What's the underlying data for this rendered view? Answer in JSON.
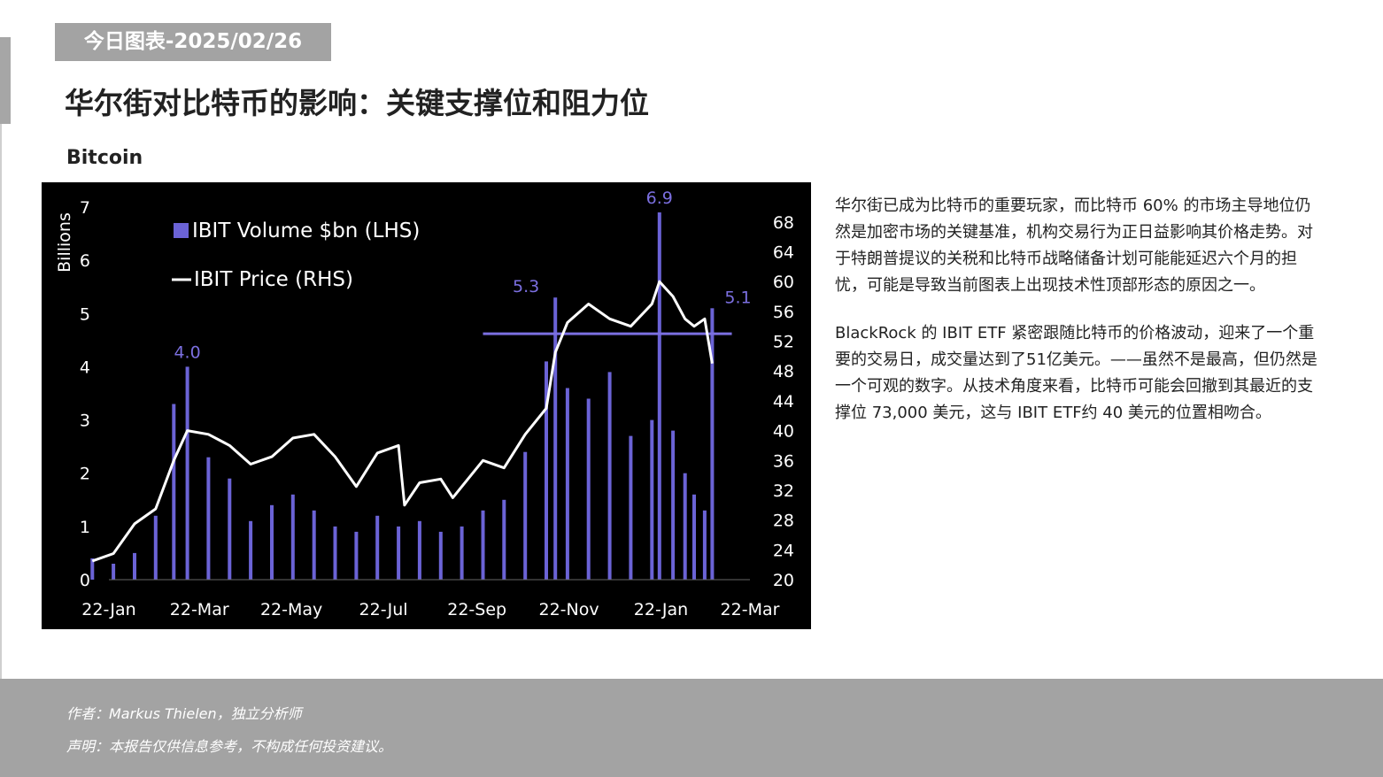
{
  "header": {
    "date_tag": "今日图表-2025/02/26",
    "title": "华尔街对比特币的影响：关键支撑位和阻力位"
  },
  "chart_title": "Bitcoin",
  "colors": {
    "volume": "#6b63d6",
    "price": "#ffffff",
    "resistance": "#7b6fe0",
    "background": "#000000",
    "tag": "#a3a3a3"
  },
  "chart_data": {
    "type": "bar",
    "legend": [
      "IBIT Volume $bn (LHS)",
      "IBIT Price (RHS)"
    ],
    "legend_placement": "top-left",
    "ylabel": "Billions",
    "ylim_left": [
      0,
      7
    ],
    "ylim_right": [
      20,
      70
    ],
    "y_ticks_left": [
      "0",
      "1",
      "2",
      "3",
      "4",
      "5",
      "6",
      "7"
    ],
    "y_ticks_right": [
      "20",
      "24",
      "28",
      "32",
      "36",
      "40",
      "44",
      "48",
      "52",
      "56",
      "60",
      "64",
      "68"
    ],
    "x_ticks": [
      "22-Jan",
      "22-Mar",
      "22-May",
      "22-Jul",
      "22-Sep",
      "22-Nov",
      "22-Jan",
      "22-Mar"
    ],
    "annotations": [
      "4.0",
      "5.3",
      "6.9",
      "5.1"
    ],
    "resistance_level": 53,
    "grid": false,
    "series": [
      {
        "name": "IBIT Volume $bn (LHS)",
        "x": [
          "2024-01-11",
          "2024-01-25",
          "2024-02-08",
          "2024-02-22",
          "2024-03-05",
          "2024-03-14",
          "2024-03-28",
          "2024-04-11",
          "2024-04-25",
          "2024-05-09",
          "2024-05-23",
          "2024-06-06",
          "2024-06-20",
          "2024-07-04",
          "2024-07-18",
          "2024-08-01",
          "2024-08-15",
          "2024-08-29",
          "2024-09-12",
          "2024-09-26",
          "2024-10-10",
          "2024-10-24",
          "2024-11-07",
          "2024-11-13",
          "2024-11-21",
          "2024-12-05",
          "2024-12-19",
          "2025-01-02",
          "2025-01-16",
          "2025-01-21",
          "2025-01-30",
          "2025-02-07",
          "2025-02-13",
          "2025-02-20",
          "2025-02-25"
        ],
        "values": [
          0.4,
          0.3,
          0.5,
          1.2,
          3.3,
          4.0,
          2.3,
          1.9,
          1.1,
          1.4,
          1.6,
          1.3,
          1.0,
          0.9,
          1.2,
          1.0,
          1.1,
          0.9,
          1.0,
          1.3,
          1.5,
          2.4,
          4.1,
          5.3,
          3.6,
          3.4,
          3.9,
          2.7,
          3.0,
          6.9,
          2.8,
          2.0,
          1.6,
          1.3,
          5.1
        ]
      },
      {
        "name": "IBIT Price (RHS)",
        "x": [
          "2024-01-11",
          "2024-01-25",
          "2024-02-08",
          "2024-02-22",
          "2024-03-05",
          "2024-03-14",
          "2024-03-28",
          "2024-04-11",
          "2024-04-25",
          "2024-05-09",
          "2024-05-23",
          "2024-06-06",
          "2024-06-20",
          "2024-07-04",
          "2024-07-18",
          "2024-08-01",
          "2024-08-05",
          "2024-08-15",
          "2024-08-29",
          "2024-09-06",
          "2024-09-12",
          "2024-09-26",
          "2024-10-10",
          "2024-10-24",
          "2024-11-07",
          "2024-11-13",
          "2024-11-21",
          "2024-12-05",
          "2024-12-19",
          "2025-01-02",
          "2025-01-16",
          "2025-01-21",
          "2025-01-30",
          "2025-02-07",
          "2025-02-13",
          "2025-02-20",
          "2025-02-25"
        ],
        "values": [
          22.5,
          23.5,
          27.5,
          29.5,
          36.0,
          40.0,
          39.5,
          38.0,
          35.5,
          36.5,
          39.0,
          39.5,
          36.5,
          32.5,
          37.0,
          38.0,
          30.0,
          33.0,
          33.5,
          31.0,
          32.5,
          36.0,
          35.0,
          39.5,
          43.0,
          50.5,
          54.5,
          57.0,
          55.0,
          54.0,
          57.0,
          60.0,
          58.0,
          55.0,
          54.0,
          55.0,
          49.0
        ]
      }
    ]
  },
  "side_text": {
    "p1": "华尔街已成为比特币的重要玩家，而比特币 60% 的市场主导地位仍然是加密市场的关键基准，机构交易行为正日益影响其价格走势。对于特朗普提议的关税和比特币战略储备计划可能能延迟六个月的担忧，可能是导致当前图表上出现技术性顶部形态的原因之一。",
    "p2": "BlackRock 的 IBIT ETF 紧密跟随比特币的价格波动，迎来了一个重要的交易日，成交量达到了51亿美元。——虽然不是最高，但仍然是一个可观的数字。从技术角度来看，比特币可能会回撤到其最近的支撑位 73,000 美元，这与 IBIT ETF约 40 美元的位置相吻合。"
  },
  "footer": {
    "author": "作者：Markus Thielen，独立分析师",
    "disclaimer": "声明：本报告仅供信息参考，不构成任何投资建议。"
  }
}
